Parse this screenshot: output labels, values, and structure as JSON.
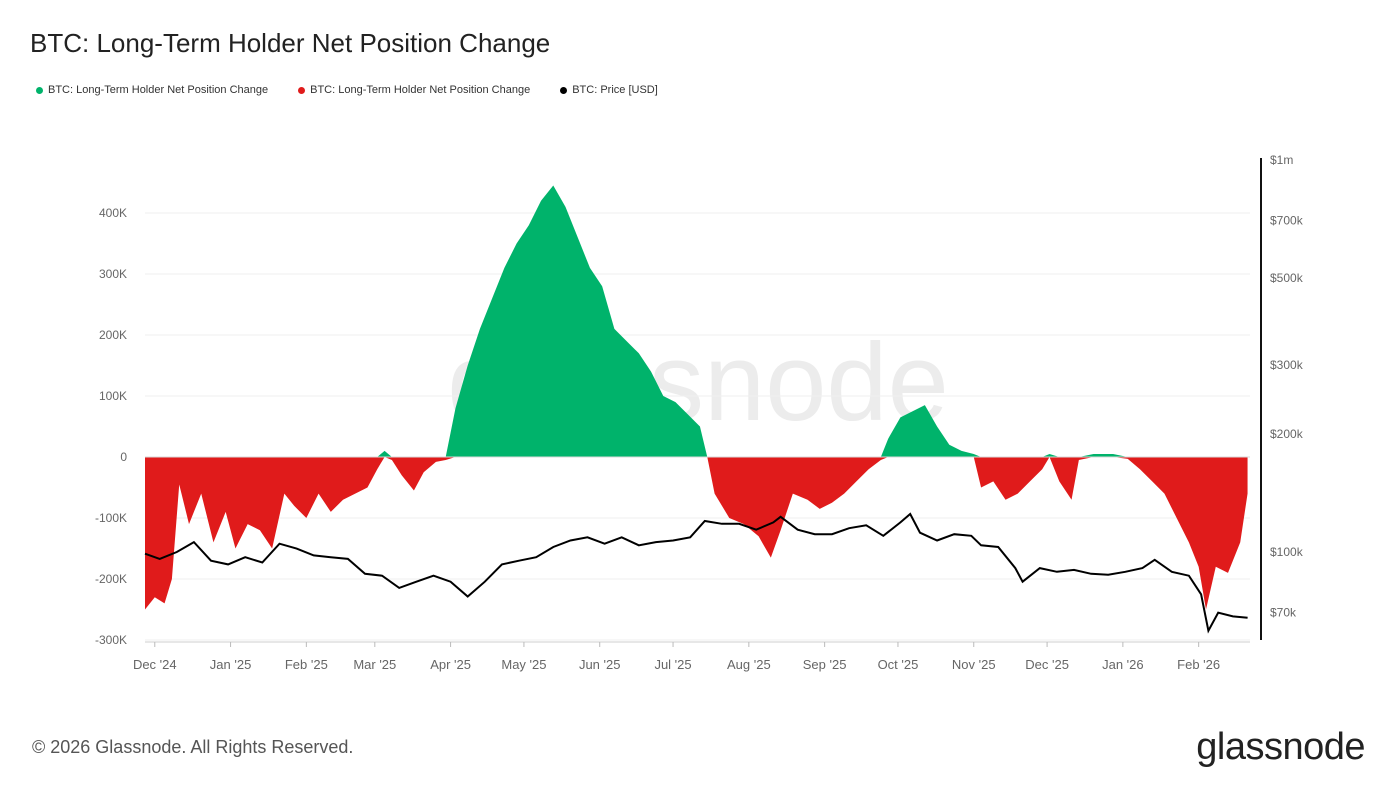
{
  "title": "BTC: Long-Term Holder Net Position Change",
  "legend": [
    {
      "label": "BTC: Long-Term Holder Net Position Change",
      "color": "#00b36b"
    },
    {
      "label": "BTC: Long-Term Holder Net Position Change",
      "color": "#e01b1b"
    },
    {
      "label": "BTC: Price [USD]",
      "color": "#000000"
    }
  ],
  "footer": "© 2026 Glassnode. All Rights Reserved.",
  "brand": "glassnode",
  "watermark": "glassnode",
  "chart_data": {
    "type": "area",
    "x_tick_labels": [
      "Dec '24",
      "Jan '25",
      "Feb '25",
      "Mar '25",
      "Apr '25",
      "May '25",
      "Jun '25",
      "Jul '25",
      "Aug '25",
      "Sep '25",
      "Oct '25",
      "Nov '25",
      "Dec '25",
      "Jan '26",
      "Feb '26"
    ],
    "y_left": {
      "ticks": [
        400000,
        300000,
        200000,
        100000,
        0,
        -100000,
        -200000,
        -300000
      ],
      "tick_labels": [
        "400K",
        "300K",
        "200K",
        "100K",
        "0",
        "-100K",
        "-200K",
        "-300K"
      ],
      "range": [
        -300000,
        450000
      ]
    },
    "y_right": {
      "scale": "log",
      "ticks": [
        1000000,
        700000,
        500000,
        300000,
        200000,
        100000,
        70000
      ],
      "tick_labels": [
        "$1m",
        "$700k",
        "$500k",
        "$300k",
        "$200k",
        "$100k",
        "$70k"
      ]
    },
    "grid": true,
    "legend_position": "top-left",
    "series": [
      {
        "axis": "left",
        "color_positive": "#00b36b",
        "color_negative": "#e01b1b",
        "points": [
          [
            "2024-11-27",
            -250000
          ],
          [
            "2024-12-01",
            -230000
          ],
          [
            "2024-12-05",
            -240000
          ],
          [
            "2024-12-08",
            -200000
          ],
          [
            "2024-12-11",
            -45000
          ],
          [
            "2024-12-15",
            -110000
          ],
          [
            "2024-12-20",
            -60000
          ],
          [
            "2024-12-25",
            -140000
          ],
          [
            "2024-12-30",
            -90000
          ],
          [
            "2025-01-03",
            -150000
          ],
          [
            "2025-01-08",
            -110000
          ],
          [
            "2025-01-13",
            -120000
          ],
          [
            "2025-01-18",
            -150000
          ],
          [
            "2025-01-23",
            -60000
          ],
          [
            "2025-01-27",
            -80000
          ],
          [
            "2025-02-01",
            -100000
          ],
          [
            "2025-02-06",
            -60000
          ],
          [
            "2025-02-11",
            -90000
          ],
          [
            "2025-02-16",
            -70000
          ],
          [
            "2025-02-21",
            -60000
          ],
          [
            "2025-02-26",
            -50000
          ],
          [
            "2025-03-02",
            -20000
          ],
          [
            "2025-03-05",
            10000
          ],
          [
            "2025-03-08",
            -5000
          ],
          [
            "2025-03-12",
            -30000
          ],
          [
            "2025-03-17",
            -55000
          ],
          [
            "2025-03-21",
            -25000
          ],
          [
            "2025-03-26",
            -8000
          ],
          [
            "2025-03-30",
            -5000
          ],
          [
            "2025-04-03",
            80000
          ],
          [
            "2025-04-08",
            150000
          ],
          [
            "2025-04-13",
            210000
          ],
          [
            "2025-04-18",
            260000
          ],
          [
            "2025-04-23",
            310000
          ],
          [
            "2025-04-28",
            350000
          ],
          [
            "2025-05-03",
            380000
          ],
          [
            "2025-05-08",
            420000
          ],
          [
            "2025-05-13",
            445000
          ],
          [
            "2025-05-18",
            410000
          ],
          [
            "2025-05-23",
            360000
          ],
          [
            "2025-05-28",
            310000
          ],
          [
            "2025-06-02",
            280000
          ],
          [
            "2025-06-07",
            210000
          ],
          [
            "2025-06-12",
            190000
          ],
          [
            "2025-06-17",
            170000
          ],
          [
            "2025-06-22",
            140000
          ],
          [
            "2025-06-27",
            100000
          ],
          [
            "2025-07-02",
            90000
          ],
          [
            "2025-07-07",
            70000
          ],
          [
            "2025-07-12",
            50000
          ],
          [
            "2025-07-15",
            0
          ],
          [
            "2025-07-18",
            -60000
          ],
          [
            "2025-07-24",
            -100000
          ],
          [
            "2025-07-30",
            -110000
          ],
          [
            "2025-08-05",
            -130000
          ],
          [
            "2025-08-10",
            -165000
          ],
          [
            "2025-08-14",
            -120000
          ],
          [
            "2025-08-19",
            -60000
          ],
          [
            "2025-08-25",
            -70000
          ],
          [
            "2025-08-30",
            -85000
          ],
          [
            "2025-09-04",
            -75000
          ],
          [
            "2025-09-09",
            -60000
          ],
          [
            "2025-09-14",
            -40000
          ],
          [
            "2025-09-19",
            -20000
          ],
          [
            "2025-09-24",
            -5000
          ],
          [
            "2025-09-27",
            30000
          ],
          [
            "2025-10-02",
            65000
          ],
          [
            "2025-10-07",
            75000
          ],
          [
            "2025-10-12",
            85000
          ],
          [
            "2025-10-17",
            50000
          ],
          [
            "2025-10-22",
            20000
          ],
          [
            "2025-10-27",
            10000
          ],
          [
            "2025-11-01",
            5000
          ],
          [
            "2025-11-04",
            -50000
          ],
          [
            "2025-11-09",
            -40000
          ],
          [
            "2025-11-14",
            -70000
          ],
          [
            "2025-11-19",
            -60000
          ],
          [
            "2025-11-24",
            -40000
          ],
          [
            "2025-11-29",
            -20000
          ],
          [
            "2025-12-02",
            5000
          ],
          [
            "2025-12-06",
            -40000
          ],
          [
            "2025-12-11",
            -70000
          ],
          [
            "2025-12-14",
            -5000
          ],
          [
            "2025-12-20",
            5000
          ],
          [
            "2025-12-28",
            5000
          ],
          [
            "2026-01-03",
            -3000
          ],
          [
            "2026-01-08",
            -20000
          ],
          [
            "2026-01-13",
            -40000
          ],
          [
            "2026-01-18",
            -60000
          ],
          [
            "2026-01-23",
            -100000
          ],
          [
            "2026-01-28",
            -140000
          ],
          [
            "2026-02-01",
            -180000
          ],
          [
            "2026-02-04",
            -250000
          ],
          [
            "2026-02-08",
            -180000
          ],
          [
            "2026-02-13",
            -190000
          ],
          [
            "2026-02-18",
            -140000
          ],
          [
            "2026-02-21",
            -60000
          ]
        ]
      },
      {
        "axis": "right",
        "color": "#000000",
        "points": [
          [
            "2024-11-27",
            99000
          ],
          [
            "2024-12-03",
            96000
          ],
          [
            "2024-12-10",
            100000
          ],
          [
            "2024-12-17",
            106000
          ],
          [
            "2024-12-24",
            95000
          ],
          [
            "2024-12-31",
            93000
          ],
          [
            "2025-01-07",
            97000
          ],
          [
            "2025-01-14",
            94000
          ],
          [
            "2025-01-21",
            105000
          ],
          [
            "2025-01-28",
            102000
          ],
          [
            "2025-02-04",
            98000
          ],
          [
            "2025-02-11",
            97000
          ],
          [
            "2025-02-18",
            96000
          ],
          [
            "2025-02-25",
            88000
          ],
          [
            "2025-03-04",
            87000
          ],
          [
            "2025-03-11",
            81000
          ],
          [
            "2025-03-18",
            84000
          ],
          [
            "2025-03-25",
            87000
          ],
          [
            "2025-04-01",
            84000
          ],
          [
            "2025-04-08",
            77000
          ],
          [
            "2025-04-15",
            84000
          ],
          [
            "2025-04-22",
            93000
          ],
          [
            "2025-04-29",
            95000
          ],
          [
            "2025-05-06",
            97000
          ],
          [
            "2025-05-13",
            103000
          ],
          [
            "2025-05-20",
            107000
          ],
          [
            "2025-05-27",
            109000
          ],
          [
            "2025-06-03",
            105000
          ],
          [
            "2025-06-10",
            109000
          ],
          [
            "2025-06-17",
            104000
          ],
          [
            "2025-06-24",
            106000
          ],
          [
            "2025-07-01",
            107000
          ],
          [
            "2025-07-08",
            109000
          ],
          [
            "2025-07-14",
            120000
          ],
          [
            "2025-07-21",
            118000
          ],
          [
            "2025-07-28",
            118000
          ],
          [
            "2025-08-04",
            114000
          ],
          [
            "2025-08-11",
            119000
          ],
          [
            "2025-08-14",
            123000
          ],
          [
            "2025-08-21",
            114000
          ],
          [
            "2025-08-28",
            111000
          ],
          [
            "2025-09-04",
            111000
          ],
          [
            "2025-09-11",
            115000
          ],
          [
            "2025-09-18",
            117000
          ],
          [
            "2025-09-25",
            110000
          ],
          [
            "2025-10-02",
            119000
          ],
          [
            "2025-10-06",
            125000
          ],
          [
            "2025-10-10",
            112000
          ],
          [
            "2025-10-17",
            107000
          ],
          [
            "2025-10-24",
            111000
          ],
          [
            "2025-10-31",
            110000
          ],
          [
            "2025-11-04",
            104000
          ],
          [
            "2025-11-11",
            103000
          ],
          [
            "2025-11-18",
            91000
          ],
          [
            "2025-11-21",
            84000
          ],
          [
            "2025-11-28",
            91000
          ],
          [
            "2025-12-05",
            89000
          ],
          [
            "2025-12-12",
            90000
          ],
          [
            "2025-12-19",
            88000
          ],
          [
            "2025-12-26",
            87500
          ],
          [
            "2026-01-02",
            89000
          ],
          [
            "2026-01-09",
            91000
          ],
          [
            "2026-01-14",
            95500
          ],
          [
            "2026-01-21",
            89000
          ],
          [
            "2026-01-28",
            87000
          ],
          [
            "2026-02-02",
            78000
          ],
          [
            "2026-02-05",
            63000
          ],
          [
            "2026-02-09",
            70000
          ],
          [
            "2026-02-15",
            68500
          ],
          [
            "2026-02-21",
            68000
          ]
        ]
      }
    ]
  }
}
